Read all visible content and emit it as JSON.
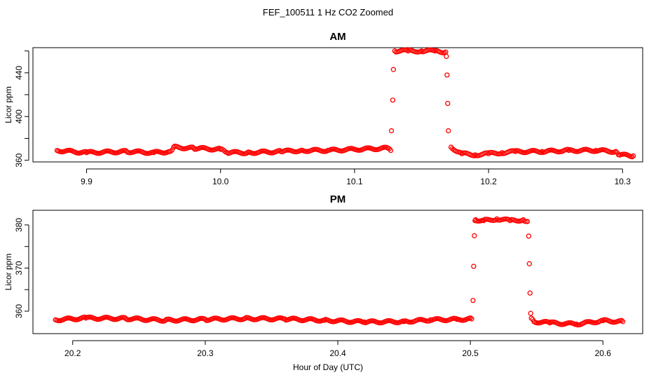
{
  "figure": {
    "title": "FEF_100511  1 Hz CO2 Zoomed",
    "xlabel": "Hour of Day (UTC)"
  },
  "colors": {
    "points": "#ff0000",
    "axes": "#000000",
    "background": "#ffffff"
  },
  "chart_data": [
    {
      "type": "scatter",
      "title": "AM",
      "xlabel": "",
      "ylabel": "Licor ppm",
      "xlim": [
        9.86,
        10.315
      ],
      "ylim": [
        358.5,
        463
      ],
      "x_ticks": [
        9.9,
        10.0,
        10.1,
        10.2,
        10.3
      ],
      "x_tick_labels": [
        "9.9",
        "10.0",
        "10.1",
        "10.2",
        "10.3"
      ],
      "y_ticks": [
        360,
        380,
        400,
        420,
        440,
        460
      ],
      "y_tick_labels": [
        "360",
        "",
        "400",
        "",
        "440",
        ""
      ],
      "grid": false,
      "legend": "none",
      "series": [
        {
          "marker": "open-circle",
          "x": [
            9.878,
            9.9,
            9.93,
            9.95,
            9.962,
            9.965,
            9.98,
            10.0,
            10.005,
            10.02,
            10.045,
            10.06,
            10.08,
            10.1,
            10.125,
            10.127,
            10.1275,
            10.1285,
            10.129,
            10.13,
            10.14,
            10.15,
            10.16,
            10.168,
            10.1685,
            10.169,
            10.1695,
            10.17,
            10.172,
            10.18,
            10.19,
            10.2,
            10.21,
            10.22,
            10.24,
            10.26,
            10.28,
            10.295,
            10.297,
            10.308
          ],
          "y": [
            369,
            367,
            368,
            367,
            368,
            372,
            371,
            370,
            367,
            367,
            368,
            369,
            369,
            370,
            371,
            369,
            387,
            415,
            443,
            460,
            460,
            460,
            460,
            459,
            455,
            438,
            412,
            387,
            372,
            366,
            365,
            366,
            367,
            368,
            368,
            369,
            369,
            368,
            365,
            364
          ]
        }
      ]
    },
    {
      "type": "scatter",
      "title": "PM",
      "xlabel": "",
      "ylabel": "Licor ppm",
      "xlim": [
        20.17,
        20.63
      ],
      "ylim": [
        354.8,
        383.4
      ],
      "x_ticks": [
        20.2,
        20.3,
        20.4,
        20.5,
        20.6
      ],
      "x_tick_labels": [
        "20.2",
        "20.3",
        "20.4",
        "20.5",
        "20.6"
      ],
      "y_ticks": [
        360,
        365,
        370,
        375,
        380
      ],
      "y_tick_labels": [
        "360",
        "",
        "370",
        "",
        "380"
      ],
      "grid": false,
      "legend": "none",
      "series": [
        {
          "marker": "open-circle",
          "x": [
            20.187,
            20.21,
            20.24,
            20.27,
            20.3,
            20.33,
            20.36,
            20.39,
            20.42,
            20.45,
            20.47,
            20.49,
            20.501,
            20.502,
            20.5025,
            20.503,
            20.5035,
            20.504,
            20.51,
            20.52,
            20.53,
            20.54,
            20.543,
            20.544,
            20.5445,
            20.545,
            20.5455,
            20.546,
            20.548,
            20.56,
            20.58,
            20.6,
            20.615
          ],
          "y": [
            358.0,
            358.4,
            358.3,
            357.9,
            358.1,
            358.3,
            358.2,
            357.9,
            357.5,
            357.6,
            358.0,
            358.1,
            358.2,
            362.5,
            370.4,
            377.5,
            381.0,
            381.2,
            381.0,
            381.4,
            381.0,
            381.2,
            380.8,
            377.4,
            371.0,
            364.2,
            359.5,
            358.4,
            357.6,
            357.3,
            357.0,
            357.8,
            357.6
          ]
        }
      ]
    }
  ]
}
